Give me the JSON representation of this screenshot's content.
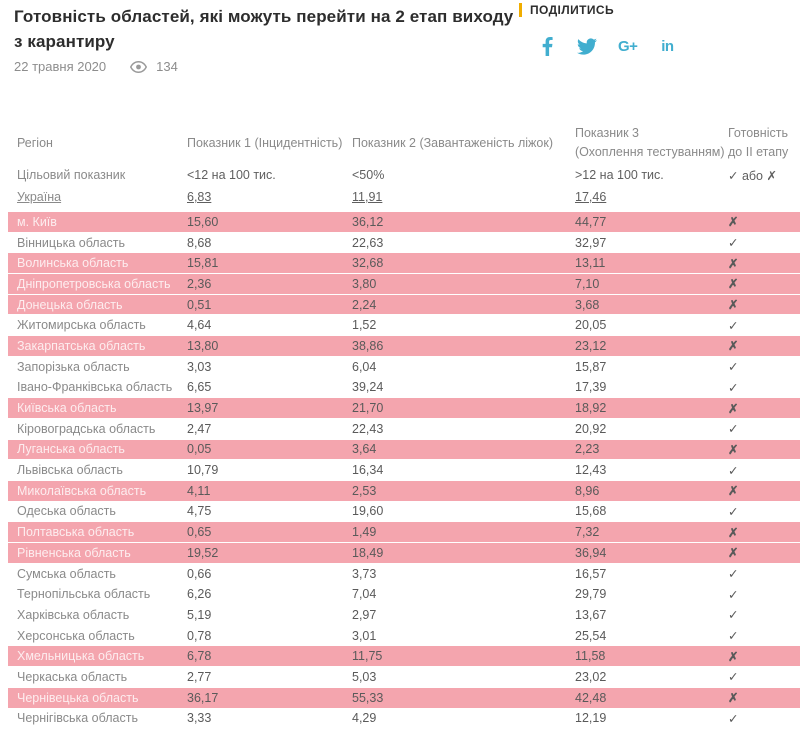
{
  "colors": {
    "highlight_row": "#f4a5ae",
    "accent_yellow": "#f0ad00",
    "social_icon_blue": "#41aecf"
  },
  "header": {
    "title": "Готовність областей, які можуть перейти на 2 етап виходу з карантиру",
    "date": "22 травня 2020",
    "views": "134",
    "share_label": "ПОДІЛИТИСЬ",
    "social_icons": [
      "facebook-icon",
      "twitter-icon",
      "googleplus-icon",
      "linkedin-icon"
    ],
    "googleplus_glyph": "G+",
    "linkedin_glyph": "in"
  },
  "table": {
    "columns": [
      {
        "label": "Регіон"
      },
      {
        "label": "Показник 1 (Інцидентність)"
      },
      {
        "label": "Показник 2 (Завантаженість ліжок)"
      },
      {
        "line1": "Показник 3",
        "line2": "(Охоплення тестуванням)"
      },
      {
        "line1": "Готовність",
        "line2": "до II етапу"
      }
    ],
    "target_row": {
      "label": "Цільовий показник",
      "p1": "<12 на 100 тис.",
      "p2": "<50%",
      "p3": ">12 на 100 тис.",
      "ready": "✓ або ✗"
    },
    "ukraine_row": {
      "label": "Україна",
      "p1": "6,83",
      "p2": "11,91",
      "p3": "17,46"
    },
    "rows": [
      {
        "region": "м. Київ",
        "p1": "15,60",
        "p2": "36,12",
        "p3": "44,77",
        "ready": "✗",
        "highlight": true
      },
      {
        "region": "Вінницька область",
        "p1": "8,68",
        "p2": "22,63",
        "p3": "32,97",
        "ready": "✓",
        "highlight": false
      },
      {
        "region": "Волинська область",
        "p1": "15,81",
        "p2": "32,68",
        "p3": "13,11",
        "ready": "✗",
        "highlight": true
      },
      {
        "region": "Дніпропетровська область",
        "p1": "2,36",
        "p2": "3,80",
        "p3": "7,10",
        "ready": "✗",
        "highlight": true
      },
      {
        "region": "Донецька область",
        "p1": "0,51",
        "p2": "2,24",
        "p3": "3,68",
        "ready": "✗",
        "highlight": true
      },
      {
        "region": "Житомирська область",
        "p1": "4,64",
        "p2": "1,52",
        "p3": "20,05",
        "ready": "✓",
        "highlight": false
      },
      {
        "region": "Закарпатська область",
        "p1": "13,80",
        "p2": "38,86",
        "p3": "23,12",
        "ready": "✗",
        "highlight": true
      },
      {
        "region": "Запорізька область",
        "p1": "3,03",
        "p2": "6,04",
        "p3": "15,87",
        "ready": "✓",
        "highlight": false
      },
      {
        "region": "Івано-Франківська область",
        "p1": "6,65",
        "p2": "39,24",
        "p3": "17,39",
        "ready": "✓",
        "highlight": false
      },
      {
        "region": "Київська область",
        "p1": "13,97",
        "p2": "21,70",
        "p3": "18,92",
        "ready": "✗",
        "highlight": true
      },
      {
        "region": "Кіровоградська область",
        "p1": "2,47",
        "p2": "22,43",
        "p3": "20,92",
        "ready": "✓",
        "highlight": false
      },
      {
        "region": "Луганська область",
        "p1": "0,05",
        "p2": "3,64",
        "p3": "2,23",
        "ready": "✗",
        "highlight": true
      },
      {
        "region": "Львівська область",
        "p1": "10,79",
        "p2": "16,34",
        "p3": "12,43",
        "ready": "✓",
        "highlight": false
      },
      {
        "region": "Миколаївська область",
        "p1": "4,11",
        "p2": "2,53",
        "p3": "8,96",
        "ready": "✗",
        "highlight": true
      },
      {
        "region": "Одеська область",
        "p1": "4,75",
        "p2": "19,60",
        "p3": "15,68",
        "ready": "✓",
        "highlight": false
      },
      {
        "region": "Полтавська область",
        "p1": "0,65",
        "p2": "1,49",
        "p3": "7,32",
        "ready": "✗",
        "highlight": true
      },
      {
        "region": "Рівненська область",
        "p1": "19,52",
        "p2": "18,49",
        "p3": "36,94",
        "ready": "✗",
        "highlight": true
      },
      {
        "region": "Сумська область",
        "p1": "0,66",
        "p2": "3,73",
        "p3": "16,57",
        "ready": "✓",
        "highlight": false
      },
      {
        "region": "Тернопільська область",
        "p1": "6,26",
        "p2": "7,04",
        "p3": "29,79",
        "ready": "✓",
        "highlight": false
      },
      {
        "region": "Харківська область",
        "p1": "5,19",
        "p2": "2,97",
        "p3": "13,67",
        "ready": "✓",
        "highlight": false
      },
      {
        "region": "Херсонська область",
        "p1": "0,78",
        "p2": "3,01",
        "p3": "25,54",
        "ready": "✓",
        "highlight": false
      },
      {
        "region": "Хмельницька область",
        "p1": "6,78",
        "p2": "11,75",
        "p3": "11,58",
        "ready": "✗",
        "highlight": true
      },
      {
        "region": "Черкаська область",
        "p1": "2,77",
        "p2": "5,03",
        "p3": "23,02",
        "ready": "✓",
        "highlight": false
      },
      {
        "region": "Чернівецька область",
        "p1": "36,17",
        "p2": "55,33",
        "p3": "42,48",
        "ready": "✗",
        "highlight": true
      },
      {
        "region": "Чернігівська область",
        "p1": "3,33",
        "p2": "4,29",
        "p3": "12,19",
        "ready": "✓",
        "highlight": false
      }
    ]
  }
}
